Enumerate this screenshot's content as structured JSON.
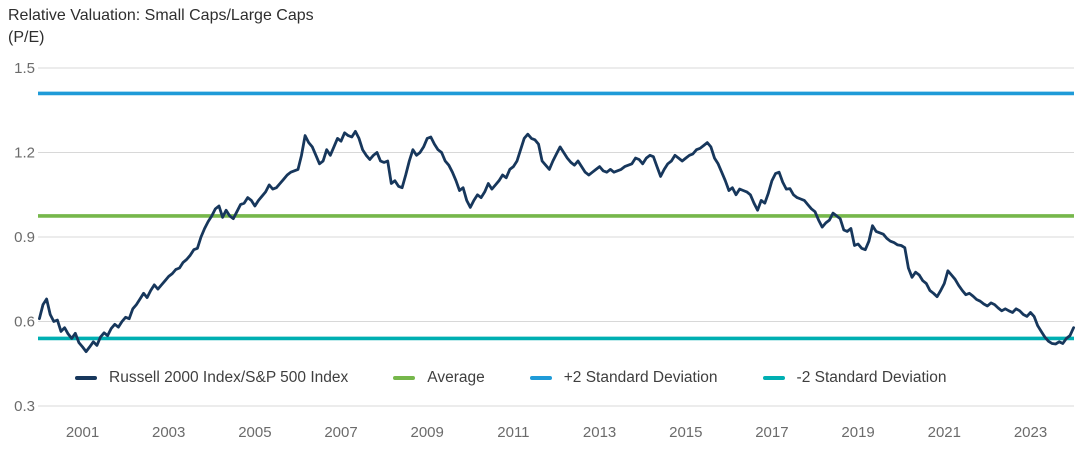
{
  "header": {
    "title": "Relative Valuation: Small Caps/Large Caps",
    "subtitle": "(P/E)"
  },
  "colors": {
    "background": "#ffffff",
    "grid": "#d8d8d8",
    "axis_text": "#6b6b6b",
    "title_text": "#2e2e2e",
    "legend_text": "#3f3f3f",
    "russell_line": "#17375C",
    "average_line": "#76B74B",
    "plus2sd_line": "#1F9BD8",
    "minus2sd_line": "#00AFB2"
  },
  "chart_data": {
    "type": "line",
    "title": "Relative Valuation: Small Caps/Large Caps",
    "subtitle": "(P/E)",
    "grid": true,
    "legend_position": "bottom-inside",
    "x_axis": {
      "min": 1999.967,
      "max": 2024.01,
      "tick_labels": [
        "2001",
        "2003",
        "2005",
        "2007",
        "2009",
        "2011",
        "2013",
        "2015",
        "2017",
        "2019",
        "2021",
        "2023"
      ],
      "tick_values": [
        2001,
        2003,
        2005,
        2007,
        2009,
        2011,
        2013,
        2015,
        2017,
        2019,
        2021,
        2023
      ]
    },
    "y_axis": {
      "min": 0.3,
      "max": 1.5,
      "tick_labels": [
        "1.5",
        "1.2",
        "0.9",
        "0.6",
        "0.3"
      ],
      "tick_values": [
        1.5,
        1.2,
        0.9,
        0.6,
        0.3
      ]
    },
    "series": [
      {
        "name": "Russell 2000 Index/S&P 500 Index",
        "kind": "line",
        "color": "#17375C",
        "x_start": 2000.0,
        "x_step": 0.083333,
        "values": [
          0.61,
          0.66,
          0.68,
          0.625,
          0.6,
          0.605,
          0.565,
          0.578,
          0.556,
          0.54,
          0.558,
          0.525,
          0.51,
          0.493,
          0.51,
          0.528,
          0.515,
          0.545,
          0.56,
          0.55,
          0.575,
          0.59,
          0.58,
          0.6,
          0.615,
          0.61,
          0.645,
          0.66,
          0.68,
          0.7,
          0.685,
          0.71,
          0.73,
          0.715,
          0.73,
          0.745,
          0.76,
          0.77,
          0.785,
          0.79,
          0.81,
          0.82,
          0.835,
          0.855,
          0.86,
          0.9,
          0.93,
          0.955,
          0.975,
          1.0,
          1.01,
          0.97,
          0.995,
          0.975,
          0.965,
          0.99,
          1.015,
          1.02,
          1.04,
          1.03,
          1.01,
          1.03,
          1.045,
          1.06,
          1.085,
          1.07,
          1.075,
          1.09,
          1.105,
          1.12,
          1.13,
          1.135,
          1.14,
          1.19,
          1.26,
          1.235,
          1.22,
          1.19,
          1.16,
          1.17,
          1.21,
          1.19,
          1.22,
          1.25,
          1.24,
          1.27,
          1.26,
          1.255,
          1.275,
          1.25,
          1.21,
          1.19,
          1.175,
          1.19,
          1.2,
          1.17,
          1.165,
          1.17,
          1.09,
          1.1,
          1.08,
          1.075,
          1.12,
          1.17,
          1.21,
          1.19,
          1.2,
          1.22,
          1.25,
          1.255,
          1.23,
          1.21,
          1.2,
          1.17,
          1.155,
          1.13,
          1.1,
          1.065,
          1.075,
          1.03,
          1.005,
          1.03,
          1.05,
          1.04,
          1.06,
          1.09,
          1.07,
          1.085,
          1.1,
          1.12,
          1.11,
          1.14,
          1.15,
          1.17,
          1.21,
          1.25,
          1.265,
          1.25,
          1.245,
          1.23,
          1.17,
          1.155,
          1.14,
          1.17,
          1.195,
          1.22,
          1.2,
          1.18,
          1.165,
          1.155,
          1.17,
          1.15,
          1.13,
          1.12,
          1.13,
          1.14,
          1.15,
          1.135,
          1.13,
          1.14,
          1.13,
          1.135,
          1.14,
          1.15,
          1.155,
          1.16,
          1.18,
          1.175,
          1.16,
          1.18,
          1.19,
          1.185,
          1.15,
          1.115,
          1.14,
          1.16,
          1.17,
          1.19,
          1.18,
          1.17,
          1.18,
          1.19,
          1.195,
          1.21,
          1.215,
          1.225,
          1.235,
          1.22,
          1.18,
          1.16,
          1.13,
          1.1,
          1.065,
          1.075,
          1.05,
          1.07,
          1.065,
          1.06,
          1.05,
          1.02,
          0.995,
          1.03,
          1.02,
          1.055,
          1.1,
          1.125,
          1.13,
          1.095,
          1.07,
          1.072,
          1.05,
          1.04,
          1.035,
          1.03,
          1.015,
          1.0,
          0.99,
          0.96,
          0.935,
          0.95,
          0.96,
          0.985,
          0.975,
          0.965,
          0.925,
          0.92,
          0.93,
          0.87,
          0.875,
          0.86,
          0.855,
          0.885,
          0.94,
          0.92,
          0.915,
          0.91,
          0.895,
          0.885,
          0.88,
          0.872,
          0.87,
          0.862,
          0.79,
          0.757,
          0.775,
          0.765,
          0.745,
          0.735,
          0.71,
          0.7,
          0.688,
          0.71,
          0.735,
          0.78,
          0.765,
          0.75,
          0.728,
          0.71,
          0.695,
          0.7,
          0.69,
          0.678,
          0.672,
          0.662,
          0.655,
          0.666,
          0.66,
          0.648,
          0.638,
          0.645,
          0.638,
          0.632,
          0.645,
          0.638,
          0.625,
          0.618,
          0.632,
          0.618,
          0.585,
          0.565,
          0.545,
          0.53,
          0.522,
          0.52,
          0.528,
          0.522,
          0.54,
          0.55,
          0.578
        ]
      },
      {
        "name": "Average",
        "kind": "hline",
        "color": "#76B74B",
        "value": 0.975
      },
      {
        "name": "+2 Standard Deviation",
        "kind": "hline",
        "color": "#1F9BD8",
        "value": 1.41
      },
      {
        "name": "-2 Standard Deviation",
        "kind": "hline",
        "color": "#00AFB2",
        "value": 0.54
      }
    ]
  }
}
